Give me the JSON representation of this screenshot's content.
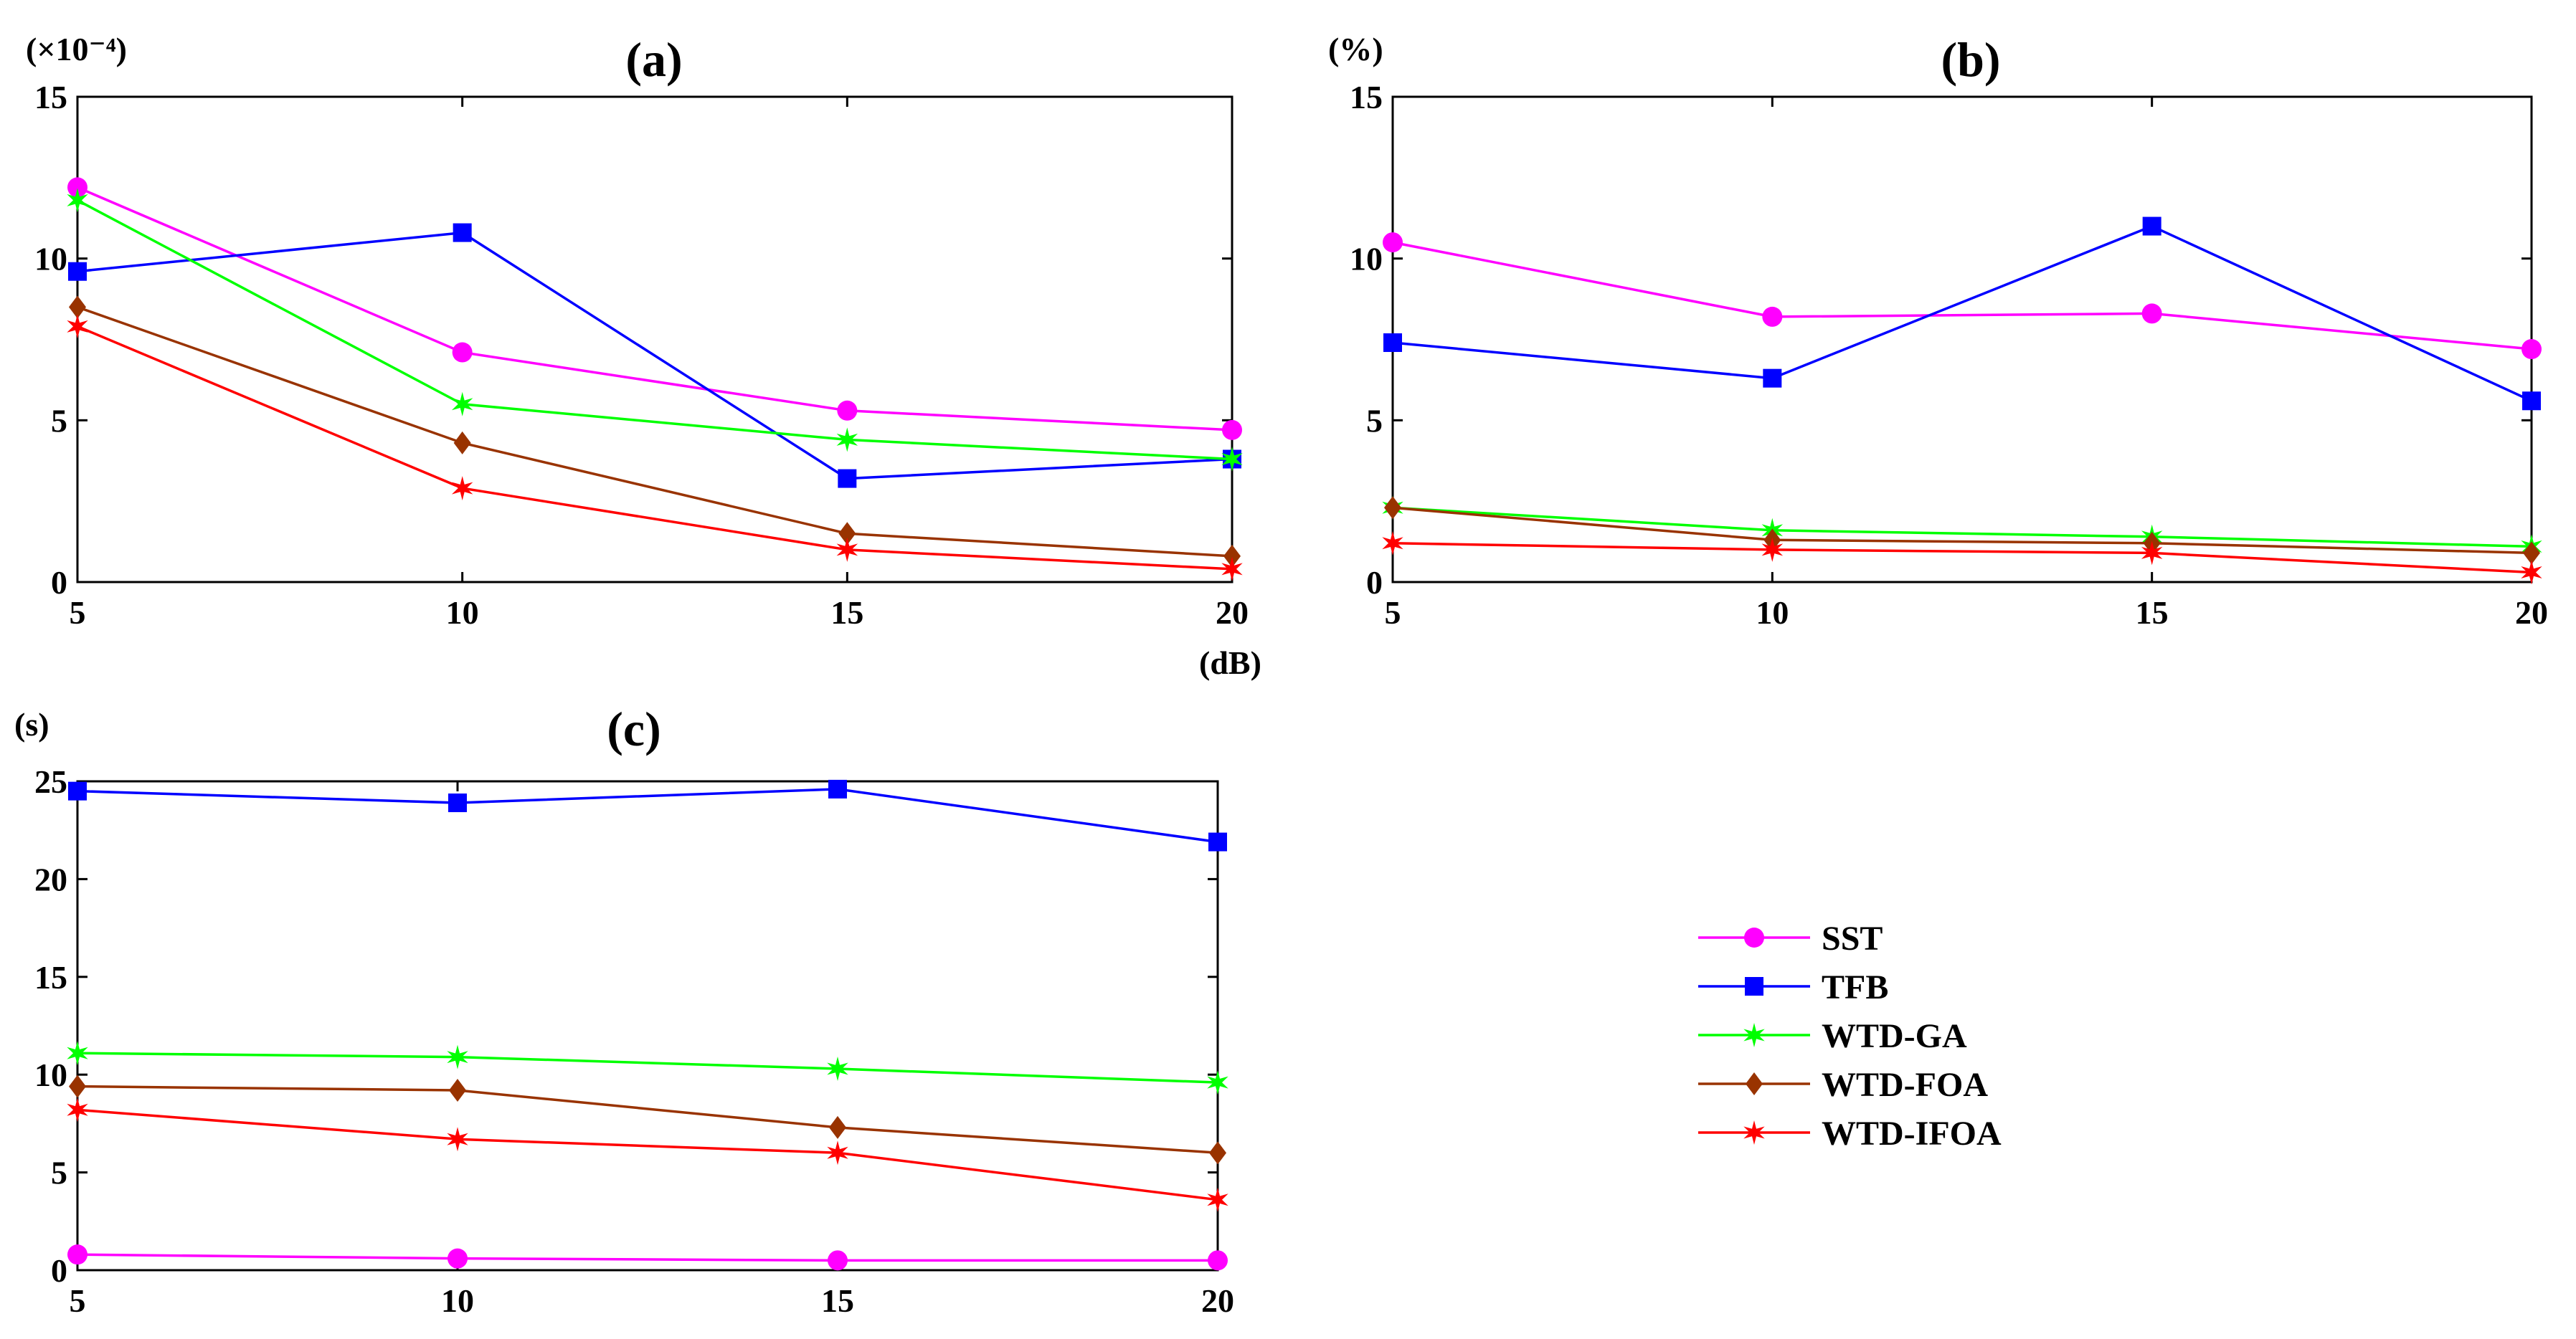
{
  "figure": {
    "legend": [
      "SST",
      "TFB",
      "WTD-GA",
      "WTD-FOA",
      "WTD-IFOA"
    ]
  },
  "series_styles": {
    "SST": {
      "color": "#ff00ff",
      "marker": "circle"
    },
    "TFB": {
      "color": "#0000ff",
      "marker": "square"
    },
    "WTD-GA": {
      "color": "#00ff00",
      "marker": "star"
    },
    "WTD-FOA": {
      "color": "#993300",
      "marker": "diamond"
    },
    "WTD-IFOA": {
      "color": "#ff0000",
      "marker": "star"
    }
  },
  "chart_data": [
    {
      "panel": "a",
      "type": "line",
      "title": "(a)",
      "ylabel": "(×10⁻⁴)",
      "xlabel": "(dB)",
      "x": [
        5,
        10,
        15,
        20
      ],
      "xlim": [
        5,
        20
      ],
      "ylim": [
        0,
        15
      ],
      "xticks": [
        "5",
        "10",
        "15",
        "20"
      ],
      "yticks": [
        "0",
        "5",
        "10",
        "15"
      ],
      "series": [
        {
          "name": "SST",
          "values": [
            12.2,
            7.1,
            5.3,
            4.7
          ]
        },
        {
          "name": "TFB",
          "values": [
            9.6,
            10.8,
            3.2,
            3.8
          ]
        },
        {
          "name": "WTD-GA",
          "values": [
            11.8,
            5.5,
            4.4,
            3.8
          ]
        },
        {
          "name": "WTD-FOA",
          "values": [
            8.5,
            4.3,
            1.5,
            0.8
          ]
        },
        {
          "name": "WTD-IFOA",
          "values": [
            7.9,
            2.9,
            1.0,
            0.4
          ]
        }
      ]
    },
    {
      "panel": "b",
      "type": "line",
      "title": "(b)",
      "ylabel": "(%)",
      "xlabel": "",
      "x": [
        5,
        10,
        15,
        20
      ],
      "xlim": [
        5,
        20
      ],
      "ylim": [
        0,
        15
      ],
      "xticks": [
        "5",
        "10",
        "15",
        "20"
      ],
      "yticks": [
        "0",
        "5",
        "10",
        "15"
      ],
      "series": [
        {
          "name": "SST",
          "values": [
            10.5,
            8.2,
            8.3,
            7.2
          ]
        },
        {
          "name": "TFB",
          "values": [
            7.4,
            6.3,
            11.0,
            5.6
          ]
        },
        {
          "name": "WTD-GA",
          "values": [
            2.3,
            1.6,
            1.4,
            1.1
          ]
        },
        {
          "name": "WTD-FOA",
          "values": [
            2.3,
            1.3,
            1.2,
            0.9
          ]
        },
        {
          "name": "WTD-IFOA",
          "values": [
            1.2,
            1.0,
            0.9,
            0.3
          ]
        }
      ]
    },
    {
      "panel": "c",
      "type": "line",
      "title": "(c)",
      "ylabel": "(s)",
      "xlabel": "",
      "x": [
        5,
        10,
        15,
        20
      ],
      "xlim": [
        5,
        20
      ],
      "ylim": [
        0,
        25
      ],
      "xticks": [
        "5",
        "10",
        "15",
        "20"
      ],
      "yticks": [
        "0",
        "5",
        "10",
        "15",
        "20",
        "25"
      ],
      "series": [
        {
          "name": "SST",
          "values": [
            0.8,
            0.6,
            0.5,
            0.5
          ]
        },
        {
          "name": "TFB",
          "values": [
            24.5,
            23.9,
            24.6,
            21.9
          ]
        },
        {
          "name": "WTD-GA",
          "values": [
            11.1,
            10.9,
            10.3,
            9.6
          ]
        },
        {
          "name": "WTD-FOA",
          "values": [
            9.4,
            9.2,
            7.3,
            6.0
          ]
        },
        {
          "name": "WTD-IFOA",
          "values": [
            8.2,
            6.7,
            6.0,
            3.6
          ]
        }
      ]
    }
  ]
}
